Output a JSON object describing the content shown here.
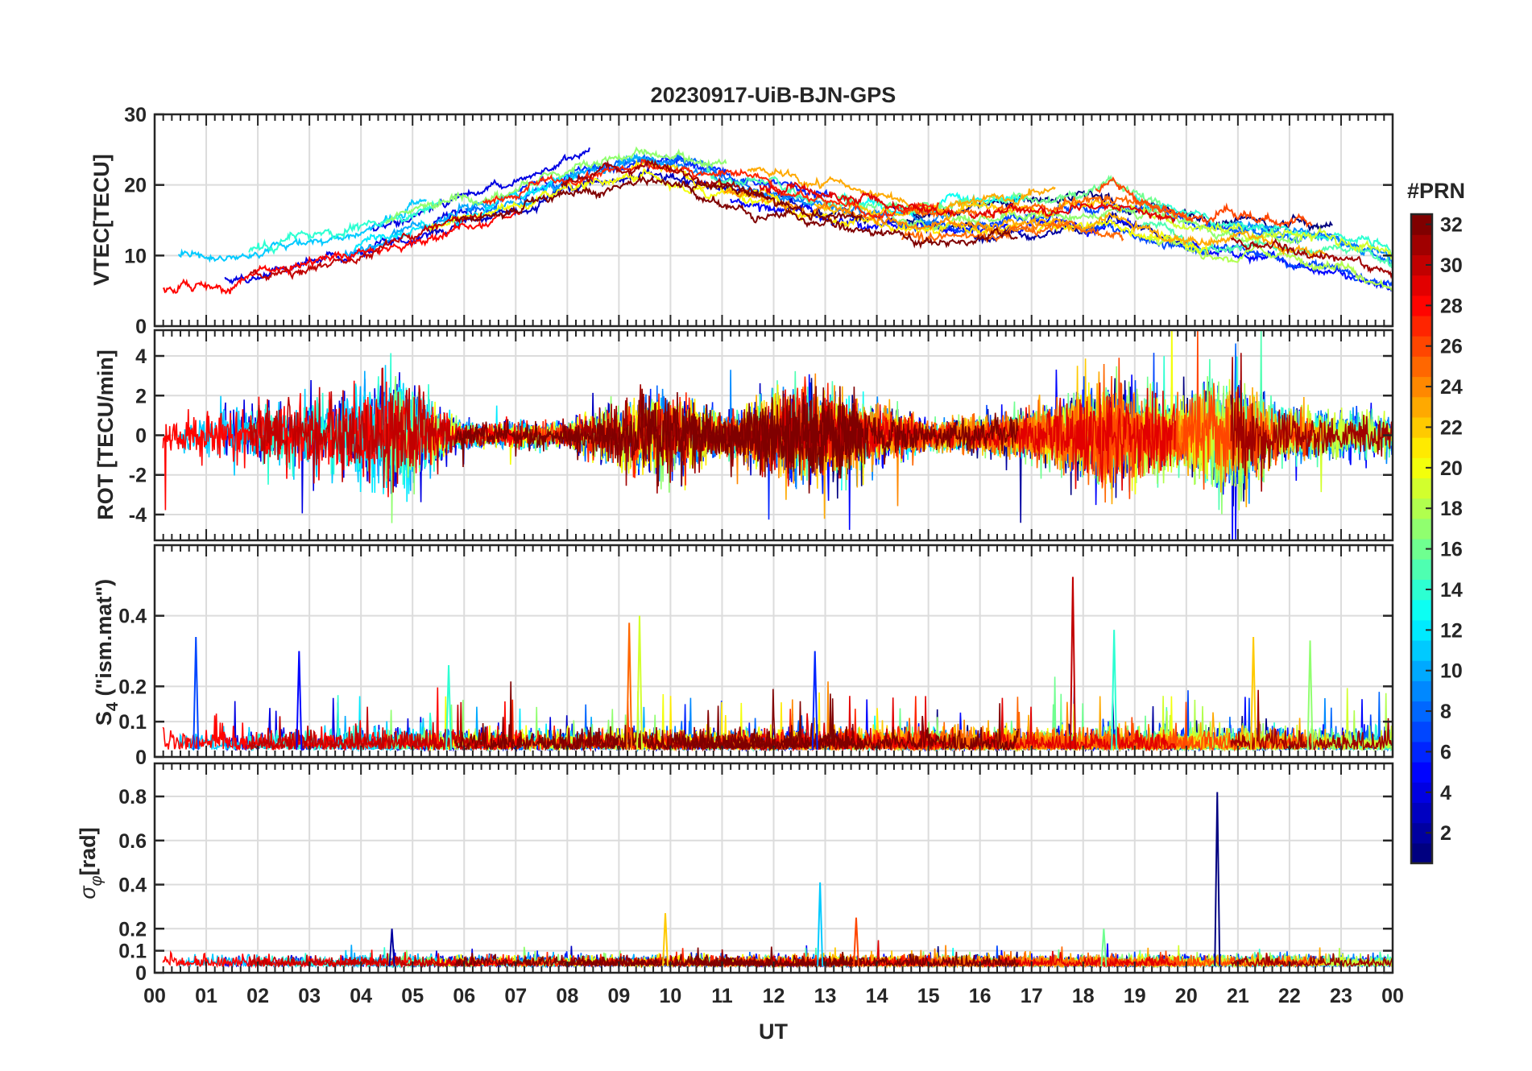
{
  "figure_title": "20230917-UiB-BJN-GPS",
  "colorbar": {
    "label": "#PRN",
    "range": [
      1,
      32
    ],
    "ticks": [
      "2",
      "4",
      "6",
      "8",
      "10",
      "12",
      "14",
      "16",
      "18",
      "20",
      "22",
      "24",
      "26",
      "28",
      "30",
      "32"
    ]
  },
  "chart_data": [
    {
      "type": "line",
      "title": "20230917-UiB-BJN-GPS",
      "ylabel": "VTEC[TECU]",
      "xlabel": "",
      "xlim": [
        0,
        24
      ],
      "ylim": [
        0,
        30
      ],
      "yticks": [
        "0",
        "10",
        "20",
        "30"
      ],
      "series_description": "VTEC per GPS PRN (1-32), colored by PRN",
      "envelope": {
        "x": [
          0,
          2,
          4,
          6,
          8,
          9.5,
          11,
          13,
          15,
          17,
          18.5,
          20,
          21.5,
          23,
          24
        ],
        "y": [
          7,
          8,
          11,
          16,
          20,
          23,
          20,
          17,
          15,
          16,
          17,
          14,
          13,
          11,
          8
        ]
      }
    },
    {
      "type": "line",
      "ylabel": "ROT [TECU/min]",
      "xlim": [
        0,
        24
      ],
      "ylim": [
        -5.3,
        5.3
      ],
      "yticks": [
        "-4",
        "-2",
        "0",
        "2",
        "4"
      ],
      "series_description": "Rate of TEC per PRN",
      "activity": {
        "x": [
          0,
          3.5,
          4.6,
          6,
          8,
          9.7,
          11,
          12.5,
          13.5,
          15,
          17,
          18.5,
          20,
          20.6,
          22,
          24
        ],
        "amplitude": [
          0.7,
          1.5,
          2.5,
          0.5,
          0.5,
          1.8,
          0.8,
          1.8,
          1.5,
          0.5,
          0.9,
          2.0,
          1.2,
          2.5,
          0.9,
          0.8
        ]
      }
    },
    {
      "type": "line",
      "ylabel_main": "S",
      "ylabel_sub": "4",
      "ylabel_tail": " (\"ism.mat\")",
      "xlim": [
        0,
        24
      ],
      "ylim": [
        0,
        0.6
      ],
      "yticks": [
        "0",
        "0.1",
        "0.2",
        "0.4"
      ],
      "series_description": "S4 amplitude scintillation index per PRN",
      "peaks": {
        "x": [
          0.8,
          2.8,
          5.7,
          9.2,
          9.4,
          12.8,
          17.8,
          18.6,
          21.3,
          22.4
        ],
        "y": [
          0.34,
          0.3,
          0.26,
          0.38,
          0.4,
          0.3,
          0.51,
          0.36,
          0.34,
          0.33
        ]
      }
    },
    {
      "type": "line",
      "ylabel_main": "σ",
      "ylabel_sub": "φ",
      "ylabel_tail": "[rad]",
      "xlabel": "UT",
      "xlim": [
        0,
        24
      ],
      "ylim": [
        0,
        0.95
      ],
      "yticks": [
        "0",
        "0.1",
        "0.2",
        "0.4",
        "0.6",
        "0.8"
      ],
      "xticks": [
        "00",
        "01",
        "02",
        "03",
        "04",
        "05",
        "06",
        "07",
        "08",
        "09",
        "10",
        "11",
        "12",
        "13",
        "14",
        "15",
        "16",
        "17",
        "18",
        "19",
        "20",
        "21",
        "22",
        "23",
        "00"
      ],
      "series_description": "Phase scintillation index per PRN",
      "peaks": {
        "x": [
          4.6,
          9.9,
          12.9,
          13.6,
          18.4,
          20.6
        ],
        "y": [
          0.2,
          0.27,
          0.41,
          0.25,
          0.2,
          0.82
        ]
      }
    }
  ]
}
